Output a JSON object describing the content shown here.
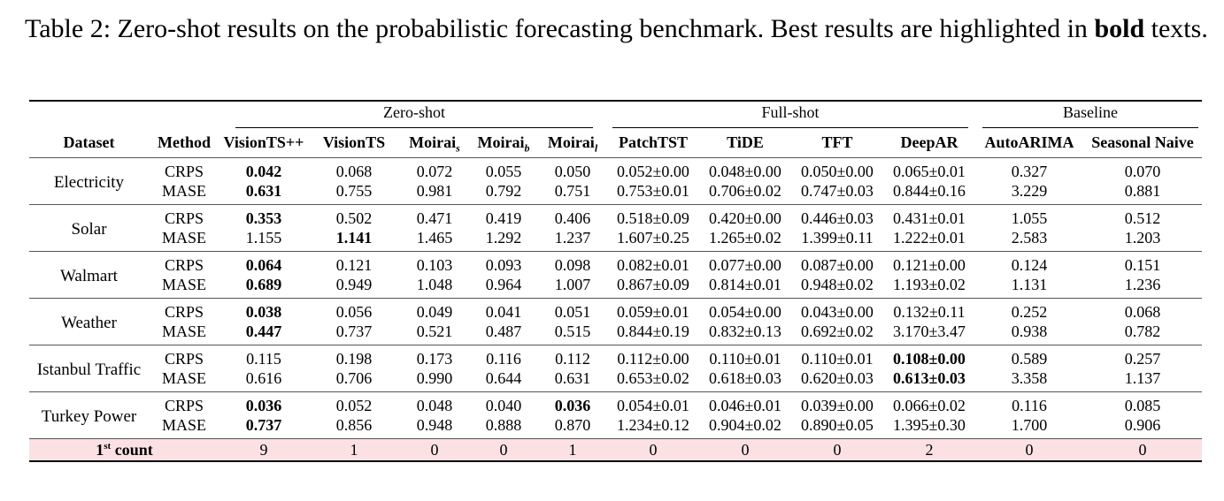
{
  "caption": {
    "prefix": "Table 2: Zero-shot results on the probabilistic forecasting benchmark. Best results are highlighted in ",
    "bold_word": "bold",
    "suffix": " texts."
  },
  "groups": {
    "zero_shot": "Zero-shot",
    "full_shot": "Full-shot",
    "baseline": "Baseline"
  },
  "headers": {
    "dataset": "Dataset",
    "method": "Method",
    "visionts_pp": "VisionTS++",
    "visionts": "VisionTS",
    "moirai": "Moirai",
    "moirai_s_sub": "s",
    "moirai_b_sub": "b",
    "moirai_l_sub": "l",
    "patchtst": "PatchTST",
    "tide": "TiDE",
    "tft": "TFT",
    "deepar": "DeepAR",
    "autoarima": "AutoARIMA",
    "seasonal_naive": "Seasonal Naive"
  },
  "rows": [
    {
      "dataset": "Electricity",
      "crps": {
        "metric": "CRPS",
        "values": [
          "0.042",
          "0.068",
          "0.072",
          "0.055",
          "0.050",
          "0.052±0.00",
          "0.048±0.00",
          "0.050±0.00",
          "0.065±0.01",
          "0.327",
          "0.070"
        ],
        "bold": [
          0
        ]
      },
      "mase": {
        "metric": "MASE",
        "values": [
          "0.631",
          "0.755",
          "0.981",
          "0.792",
          "0.751",
          "0.753±0.01",
          "0.706±0.02",
          "0.747±0.03",
          "0.844±0.16",
          "3.229",
          "0.881"
        ],
        "bold": [
          0
        ]
      }
    },
    {
      "dataset": "Solar",
      "crps": {
        "metric": "CRPS",
        "values": [
          "0.353",
          "0.502",
          "0.471",
          "0.419",
          "0.406",
          "0.518±0.09",
          "0.420±0.00",
          "0.446±0.03",
          "0.431±0.01",
          "1.055",
          "0.512"
        ],
        "bold": [
          0
        ]
      },
      "mase": {
        "metric": "MASE",
        "values": [
          "1.155",
          "1.141",
          "1.465",
          "1.292",
          "1.237",
          "1.607±0.25",
          "1.265±0.02",
          "1.399±0.11",
          "1.222±0.01",
          "2.583",
          "1.203"
        ],
        "bold": [
          1
        ]
      }
    },
    {
      "dataset": "Walmart",
      "crps": {
        "metric": "CRPS",
        "values": [
          "0.064",
          "0.121",
          "0.103",
          "0.093",
          "0.098",
          "0.082±0.01",
          "0.077±0.00",
          "0.087±0.00",
          "0.121±0.00",
          "0.124",
          "0.151"
        ],
        "bold": [
          0
        ]
      },
      "mase": {
        "metric": "MASE",
        "values": [
          "0.689",
          "0.949",
          "1.048",
          "0.964",
          "1.007",
          "0.867±0.09",
          "0.814±0.01",
          "0.948±0.02",
          "1.193±0.02",
          "1.131",
          "1.236"
        ],
        "bold": [
          0
        ]
      }
    },
    {
      "dataset": "Weather",
      "crps": {
        "metric": "CRPS",
        "values": [
          "0.038",
          "0.056",
          "0.049",
          "0.041",
          "0.051",
          "0.059±0.01",
          "0.054±0.00",
          "0.043±0.00",
          "0.132±0.11",
          "0.252",
          "0.068"
        ],
        "bold": [
          0
        ]
      },
      "mase": {
        "metric": "MASE",
        "values": [
          "0.447",
          "0.737",
          "0.521",
          "0.487",
          "0.515",
          "0.844±0.19",
          "0.832±0.13",
          "0.692±0.02",
          "3.170±3.47",
          "0.938",
          "0.782"
        ],
        "bold": [
          0
        ]
      }
    },
    {
      "dataset": "Istanbul Traffic",
      "crps": {
        "metric": "CRPS",
        "values": [
          "0.115",
          "0.198",
          "0.173",
          "0.116",
          "0.112",
          "0.112±0.00",
          "0.110±0.01",
          "0.110±0.01",
          "0.108±0.00",
          "0.589",
          "0.257"
        ],
        "bold": [
          8
        ]
      },
      "mase": {
        "metric": "MASE",
        "values": [
          "0.616",
          "0.706",
          "0.990",
          "0.644",
          "0.631",
          "0.653±0.02",
          "0.618±0.03",
          "0.620±0.03",
          "0.613±0.03",
          "3.358",
          "1.137"
        ],
        "bold": [
          8
        ]
      }
    },
    {
      "dataset": "Turkey Power",
      "crps": {
        "metric": "CRPS",
        "values": [
          "0.036",
          "0.052",
          "0.048",
          "0.040",
          "0.036",
          "0.054±0.01",
          "0.046±0.01",
          "0.039±0.00",
          "0.066±0.02",
          "0.116",
          "0.085"
        ],
        "bold": [
          0,
          4
        ]
      },
      "mase": {
        "metric": "MASE",
        "values": [
          "0.737",
          "0.856",
          "0.948",
          "0.888",
          "0.870",
          "1.234±0.12",
          "0.904±0.02",
          "0.890±0.05",
          "1.395±0.30",
          "1.700",
          "0.906"
        ],
        "bold": [
          0
        ]
      }
    }
  ],
  "count_row": {
    "label_main": "1",
    "label_sup": "st",
    "label_rest": " count",
    "values": [
      "9",
      "1",
      "0",
      "0",
      "1",
      "0",
      "0",
      "0",
      "2",
      "0",
      "0"
    ]
  }
}
